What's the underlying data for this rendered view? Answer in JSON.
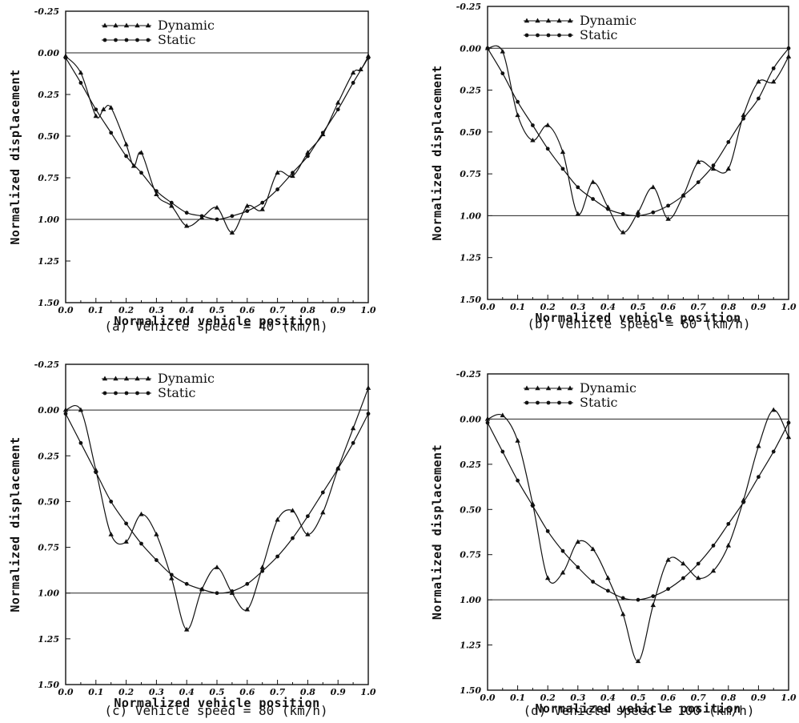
{
  "chart_data": [
    {
      "type": "line",
      "caption": "(a) Vehicle speed = 40 (km/h)",
      "xlabel": "Normalized vehicle position",
      "ylabel": "Normalized displacement",
      "xlim": [
        0,
        1
      ],
      "ylim": [
        1.5,
        -0.25
      ],
      "x_ticks": [
        "0.0",
        "0.1",
        "0.2",
        "0.3",
        "0.4",
        "0.5",
        "0.6",
        "0.7",
        "0.8",
        "0.9",
        "1.0"
      ],
      "y_ticks": [
        "-0.25",
        "0.00",
        "0.25",
        "0.50",
        "0.75",
        "1.00",
        "1.25",
        "1.50"
      ],
      "ref_lines": [
        0,
        1
      ],
      "legend": [
        "Dynamic",
        "Static"
      ],
      "series": [
        {
          "name": "Dynamic",
          "marker": "triangle",
          "x": [
            0,
            0.05,
            0.1,
            0.125,
            0.15,
            0.2,
            0.225,
            0.25,
            0.3,
            0.35,
            0.4,
            0.45,
            0.5,
            0.55,
            0.6,
            0.65,
            0.7,
            0.75,
            0.8,
            0.85,
            0.9,
            0.95,
            0.975,
            1.0
          ],
          "y": [
            0.02,
            0.12,
            0.38,
            0.34,
            0.33,
            0.55,
            0.68,
            0.6,
            0.85,
            0.92,
            1.04,
            0.99,
            0.93,
            1.08,
            0.92,
            0.94,
            0.72,
            0.74,
            0.6,
            0.49,
            0.3,
            0.12,
            0.1,
            0.02
          ]
        },
        {
          "name": "Static",
          "marker": "circle",
          "x": [
            0,
            0.05,
            0.1,
            0.15,
            0.2,
            0.25,
            0.3,
            0.35,
            0.4,
            0.45,
            0.5,
            0.55,
            0.6,
            0.65,
            0.7,
            0.75,
            0.8,
            0.85,
            0.9,
            0.95,
            1.0
          ],
          "y": [
            0.03,
            0.18,
            0.34,
            0.48,
            0.62,
            0.72,
            0.83,
            0.9,
            0.96,
            0.98,
            1.0,
            0.98,
            0.95,
            0.9,
            0.82,
            0.72,
            0.62,
            0.48,
            0.34,
            0.18,
            0.03
          ]
        }
      ]
    },
    {
      "type": "line",
      "caption": "(b) Vehicle speed = 60 (km/h)",
      "xlabel": "Normalized vehicle position",
      "ylabel": "Normalized displacement",
      "xlim": [
        0,
        1
      ],
      "ylim": [
        1.5,
        -0.25
      ],
      "x_ticks": [
        "0.0",
        "0.1",
        "0.2",
        "0.3",
        "0.4",
        "0.5",
        "0.6",
        "0.7",
        "0.8",
        "0.9",
        "1.0"
      ],
      "y_ticks": [
        "-0.25",
        "0.00",
        "0.25",
        "0.50",
        "0.75",
        "1.00",
        "1.25",
        "1.50"
      ],
      "ref_lines": [
        0,
        1
      ],
      "legend": [
        "Dynamic",
        "Static"
      ],
      "series": [
        {
          "name": "Dynamic",
          "marker": "triangle",
          "x": [
            0,
            0.05,
            0.1,
            0.15,
            0.2,
            0.25,
            0.3,
            0.35,
            0.4,
            0.45,
            0.5,
            0.55,
            0.6,
            0.65,
            0.7,
            0.75,
            0.8,
            0.85,
            0.9,
            0.95,
            1.0
          ],
          "y": [
            0.0,
            0.02,
            0.4,
            0.55,
            0.46,
            0.62,
            0.99,
            0.8,
            0.95,
            1.1,
            0.98,
            0.83,
            1.02,
            0.88,
            0.68,
            0.72,
            0.72,
            0.4,
            0.2,
            0.2,
            0.05
          ]
        },
        {
          "name": "Static",
          "marker": "circle",
          "x": [
            0,
            0.05,
            0.1,
            0.15,
            0.2,
            0.25,
            0.3,
            0.35,
            0.4,
            0.45,
            0.5,
            0.55,
            0.6,
            0.65,
            0.7,
            0.75,
            0.8,
            0.85,
            0.9,
            0.95,
            1.0
          ],
          "y": [
            0.0,
            0.15,
            0.32,
            0.46,
            0.6,
            0.72,
            0.83,
            0.9,
            0.96,
            0.99,
            1.0,
            0.98,
            0.94,
            0.88,
            0.8,
            0.7,
            0.56,
            0.42,
            0.3,
            0.12,
            0.0
          ]
        }
      ]
    },
    {
      "type": "line",
      "caption": "(c) Vehicle speed = 80 (km/h)",
      "xlabel": "Normalized vehicle position",
      "ylabel": "Normalized displacement",
      "xlim": [
        0,
        1
      ],
      "ylim": [
        1.5,
        -0.25
      ],
      "x_ticks": [
        "0.0",
        "0.1",
        "0.2",
        "0.3",
        "0.4",
        "0.5",
        "0.6",
        "0.7",
        "0.8",
        "0.9",
        "1.0"
      ],
      "y_ticks": [
        "-0.25",
        "0.00",
        "0.25",
        "0.50",
        "0.75",
        "1.00",
        "1.25",
        "1.50"
      ],
      "ref_lines": [
        0,
        1
      ],
      "legend": [
        "Dynamic",
        "Static"
      ],
      "series": [
        {
          "name": "Dynamic",
          "marker": "triangle",
          "x": [
            0,
            0.05,
            0.1,
            0.15,
            0.2,
            0.25,
            0.3,
            0.35,
            0.4,
            0.45,
            0.5,
            0.55,
            0.6,
            0.65,
            0.7,
            0.75,
            0.8,
            0.85,
            0.9,
            0.95,
            1.0
          ],
          "y": [
            0.0,
            0.0,
            0.33,
            0.68,
            0.72,
            0.57,
            0.68,
            0.92,
            1.2,
            0.98,
            0.86,
            1.0,
            1.09,
            0.86,
            0.6,
            0.55,
            0.68,
            0.56,
            0.32,
            0.1,
            -0.12
          ]
        },
        {
          "name": "Static",
          "marker": "circle",
          "x": [
            0,
            0.05,
            0.1,
            0.15,
            0.2,
            0.25,
            0.3,
            0.35,
            0.4,
            0.45,
            0.5,
            0.55,
            0.6,
            0.65,
            0.7,
            0.75,
            0.8,
            0.85,
            0.9,
            0.95,
            1.0
          ],
          "y": [
            0.02,
            0.18,
            0.34,
            0.5,
            0.62,
            0.73,
            0.82,
            0.9,
            0.95,
            0.98,
            1.0,
            0.99,
            0.95,
            0.88,
            0.8,
            0.7,
            0.58,
            0.45,
            0.32,
            0.18,
            0.02
          ]
        }
      ]
    },
    {
      "type": "line",
      "caption": "(d) Vehicle speed = 100 (km/h)",
      "xlabel": "Normalized vehicle position",
      "ylabel": "Normalized displacement",
      "xlim": [
        0,
        1
      ],
      "ylim": [
        1.5,
        -0.25
      ],
      "x_ticks": [
        "0.0",
        "0.1",
        "0.2",
        "0.3",
        "0.4",
        "0.5",
        "0.6",
        "0.7",
        "0.8",
        "0.9",
        "1.0"
      ],
      "y_ticks": [
        "-0.25",
        "0.00",
        "0.25",
        "0.50",
        "0.75",
        "1.00",
        "1.25",
        "1.50"
      ],
      "ref_lines": [
        0,
        1
      ],
      "legend": [
        "Dynamic",
        "Static"
      ],
      "series": [
        {
          "name": "Dynamic",
          "marker": "triangle",
          "x": [
            0,
            0.05,
            0.1,
            0.15,
            0.2,
            0.25,
            0.3,
            0.35,
            0.4,
            0.45,
            0.5,
            0.55,
            0.6,
            0.65,
            0.7,
            0.75,
            0.8,
            0.85,
            0.9,
            0.95,
            1.0
          ],
          "y": [
            0.0,
            -0.02,
            0.12,
            0.47,
            0.88,
            0.85,
            0.68,
            0.72,
            0.88,
            1.08,
            1.34,
            1.03,
            0.78,
            0.8,
            0.88,
            0.84,
            0.7,
            0.45,
            0.15,
            -0.05,
            0.1
          ]
        },
        {
          "name": "Static",
          "marker": "circle",
          "x": [
            0,
            0.05,
            0.1,
            0.15,
            0.2,
            0.25,
            0.3,
            0.35,
            0.4,
            0.45,
            0.5,
            0.55,
            0.6,
            0.65,
            0.7,
            0.75,
            0.8,
            0.85,
            0.9,
            0.95,
            1.0
          ],
          "y": [
            0.02,
            0.18,
            0.34,
            0.48,
            0.62,
            0.73,
            0.82,
            0.9,
            0.95,
            0.99,
            1.0,
            0.98,
            0.94,
            0.88,
            0.8,
            0.7,
            0.58,
            0.46,
            0.32,
            0.18,
            0.02
          ]
        }
      ]
    }
  ]
}
